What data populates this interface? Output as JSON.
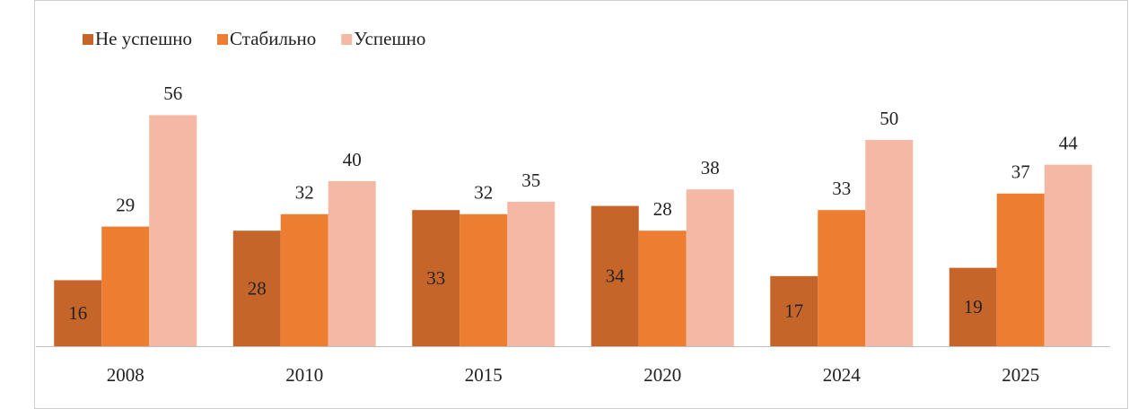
{
  "chart_data": {
    "type": "bar",
    "categories": [
      "2008",
      "2010",
      "2015",
      "2020",
      "2024",
      "2025"
    ],
    "series": [
      {
        "name": "Не успешно",
        "color": "#c5652a",
        "values": [
          16,
          28,
          33,
          34,
          17,
          19
        ]
      },
      {
        "name": "Стабильно",
        "color": "#ed7d31",
        "values": [
          29,
          32,
          32,
          28,
          33,
          37
        ]
      },
      {
        "name": "Успешно",
        "color": "#f5b8a5",
        "values": [
          56,
          40,
          35,
          38,
          50,
          44
        ]
      }
    ],
    "legend": "top-left"
  }
}
